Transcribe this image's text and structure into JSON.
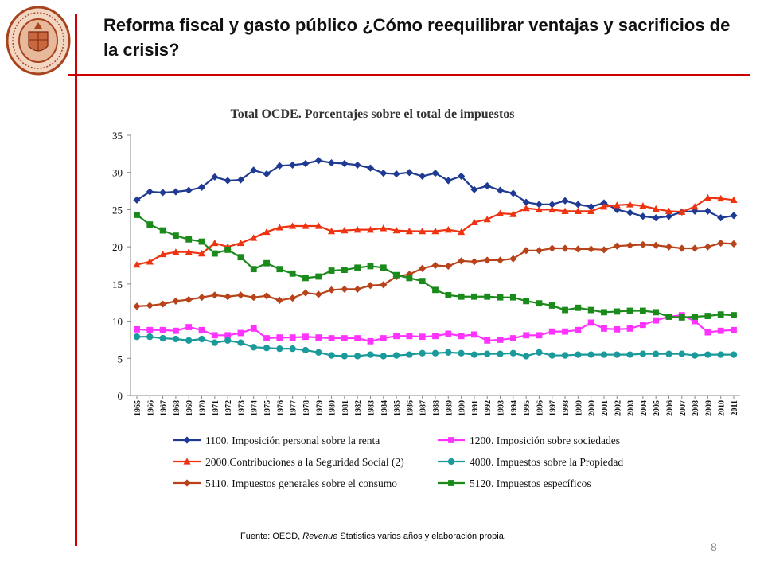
{
  "slide": {
    "title": "Reforma fiscal y gasto público ¿Cómo reequilibrar ventajas y sacrificios de la crisis?",
    "source_prefix": "Fuente: OECD, ",
    "source_italic": "Revenue",
    "source_suffix": " Statistics varios años y elaboración propia.",
    "page_number": "8",
    "accent_color": "#cc0000"
  },
  "chart_data": {
    "type": "line",
    "title": "Total OCDE. Porcentajes sobre el total de impuestos",
    "xlabel": "",
    "ylabel": "",
    "ylim": [
      0,
      35
    ],
    "yticks": [
      0,
      5,
      10,
      15,
      20,
      25,
      30,
      35
    ],
    "grid": false,
    "legend_position": "bottom",
    "x": [
      "1965",
      "1966",
      "1967",
      "1968",
      "1969",
      "1970",
      "1971",
      "1972",
      "1973",
      "1974",
      "1975",
      "1976",
      "1977",
      "1978",
      "1979",
      "1980",
      "1981",
      "1982",
      "1983",
      "1984",
      "1985",
      "1986",
      "1987",
      "1988",
      "1989",
      "1990",
      "1991",
      "1992",
      "1993",
      "1994",
      "1995",
      "1996",
      "1997",
      "1998",
      "1999",
      "2000",
      "2001",
      "2002",
      "2003",
      "2004",
      "2005",
      "2006",
      "2007",
      "2008",
      "2009",
      "2010",
      "2011"
    ],
    "series": [
      {
        "name": "1100. Imposición personal sobre la renta",
        "color": "#1f3a93",
        "marker": "diamond",
        "values": [
          26.3,
          27.4,
          27.3,
          27.4,
          27.6,
          28.0,
          29.4,
          28.9,
          29.0,
          30.3,
          29.8,
          30.9,
          31.0,
          31.2,
          31.6,
          31.3,
          31.2,
          31.0,
          30.6,
          29.9,
          29.8,
          30.0,
          29.5,
          29.9,
          28.9,
          29.5,
          27.7,
          28.2,
          27.6,
          27.2,
          26.0,
          25.7,
          25.7,
          26.2,
          25.7,
          25.4,
          25.9,
          25.0,
          24.6,
          24.1,
          23.9,
          24.1,
          24.7,
          24.8,
          24.8,
          23.9,
          24.2
        ]
      },
      {
        "name": "1200. Imposición sobre sociedades",
        "color": "#ff33ff",
        "marker": "square",
        "values": [
          8.9,
          8.8,
          8.8,
          8.7,
          9.2,
          8.8,
          8.1,
          8.1,
          8.4,
          9.0,
          7.7,
          7.8,
          7.8,
          7.9,
          7.8,
          7.7,
          7.7,
          7.7,
          7.3,
          7.7,
          8.0,
          8.0,
          7.9,
          8.0,
          8.3,
          8.0,
          8.2,
          7.4,
          7.5,
          7.7,
          8.1,
          8.1,
          8.6,
          8.6,
          8.8,
          9.8,
          9.0,
          8.9,
          9.0,
          9.5,
          10.1,
          10.6,
          10.8,
          10.0,
          8.5,
          8.7,
          8.8
        ]
      },
      {
        "name": "2000.Contribuciones a la Seguridad Social (2)",
        "color": "#ee3311",
        "marker": "triangle",
        "values": [
          17.6,
          18.0,
          19.0,
          19.3,
          19.3,
          19.1,
          20.5,
          20.0,
          20.5,
          21.2,
          22.0,
          22.6,
          22.8,
          22.8,
          22.8,
          22.1,
          22.2,
          22.3,
          22.3,
          22.5,
          22.2,
          22.1,
          22.1,
          22.1,
          22.3,
          22.0,
          23.3,
          23.7,
          24.5,
          24.4,
          25.2,
          25.0,
          25.0,
          24.8,
          24.8,
          24.8,
          25.4,
          25.6,
          25.7,
          25.5,
          25.1,
          24.8,
          24.7,
          25.4,
          26.6,
          26.5,
          26.3
        ]
      },
      {
        "name": "4000. Impuestos sobre la Propiedad",
        "color": "#1a9a9a",
        "marker": "circle",
        "values": [
          7.9,
          7.9,
          7.7,
          7.6,
          7.4,
          7.6,
          7.1,
          7.4,
          7.1,
          6.5,
          6.4,
          6.3,
          6.3,
          6.1,
          5.8,
          5.4,
          5.3,
          5.3,
          5.5,
          5.3,
          5.4,
          5.5,
          5.7,
          5.7,
          5.8,
          5.7,
          5.5,
          5.6,
          5.6,
          5.7,
          5.3,
          5.8,
          5.4,
          5.4,
          5.5,
          5.5,
          5.5,
          5.5,
          5.5,
          5.6,
          5.6,
          5.6,
          5.6,
          5.4,
          5.5,
          5.5,
          5.5
        ]
      },
      {
        "name": "5110. Impuestos generales sobre el consumo",
        "color": "#b8431a",
        "marker": "diamond",
        "values": [
          12.0,
          12.1,
          12.3,
          12.7,
          12.9,
          13.2,
          13.5,
          13.3,
          13.5,
          13.2,
          13.4,
          12.8,
          13.1,
          13.8,
          13.6,
          14.2,
          14.3,
          14.3,
          14.8,
          14.9,
          16.0,
          16.3,
          17.1,
          17.5,
          17.4,
          18.1,
          18.0,
          18.2,
          18.2,
          18.4,
          19.5,
          19.5,
          19.8,
          19.8,
          19.7,
          19.7,
          19.6,
          20.1,
          20.2,
          20.3,
          20.2,
          20.0,
          19.8,
          19.8,
          20.0,
          20.5,
          20.4
        ]
      },
      {
        "name": "5120. Impuestos específicos",
        "color": "#1a8a1a",
        "marker": "square",
        "values": [
          24.3,
          23.0,
          22.2,
          21.5,
          21.0,
          20.7,
          19.1,
          19.6,
          18.6,
          17.0,
          17.8,
          17.0,
          16.4,
          15.8,
          16.0,
          16.8,
          16.9,
          17.2,
          17.4,
          17.2,
          16.2,
          15.8,
          15.4,
          14.2,
          13.5,
          13.3,
          13.3,
          13.3,
          13.2,
          13.2,
          12.7,
          12.4,
          12.1,
          11.5,
          11.8,
          11.5,
          11.2,
          11.3,
          11.4,
          11.4,
          11.2,
          10.6,
          10.5,
          10.6,
          10.7,
          10.9,
          10.8
        ]
      }
    ]
  }
}
